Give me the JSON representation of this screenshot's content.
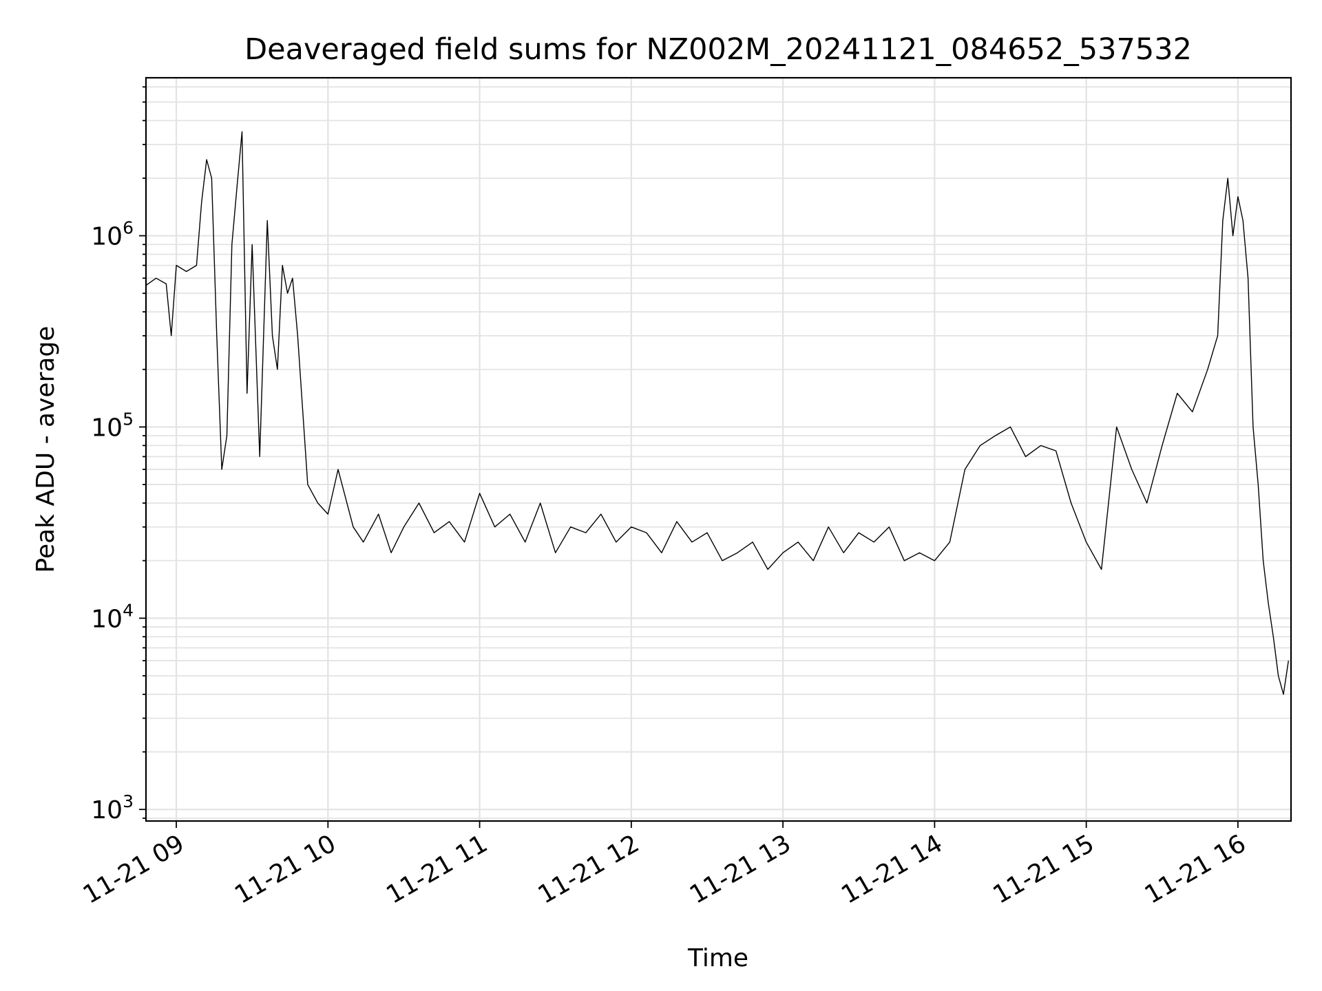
{
  "chart_data": {
    "type": "line",
    "title": "Deaveraged field sums for NZ002M_20241121_084652_537532",
    "xlabel": "Time",
    "ylabel": "Peak ADU - average",
    "yscale": "log",
    "ylim": [
      870,
      6700000
    ],
    "xlim": [
      "2024-11-21 08:48",
      "2024-11-21 16:21"
    ],
    "grid": true,
    "x_tick_labels": [
      "11-21 09",
      "11-21 10",
      "11-21 11",
      "11-21 12",
      "11-21 13",
      "11-21 14",
      "11-21 15",
      "11-21 16"
    ],
    "y_tick_labels": [
      {
        "base": "10",
        "exp": "3"
      },
      {
        "base": "10",
        "exp": "4"
      },
      {
        "base": "10",
        "exp": "5"
      },
      {
        "base": "10",
        "exp": "6"
      }
    ],
    "series": [
      {
        "color": "#000000",
        "x": [
          "2024-11-21 08:48",
          "2024-11-21 08:52",
          "2024-11-21 08:56",
          "2024-11-21 08:58",
          "2024-11-21 09:00",
          "2024-11-21 09:04",
          "2024-11-21 09:08",
          "2024-11-21 09:10",
          "2024-11-21 09:12",
          "2024-11-21 09:14",
          "2024-11-21 09:16",
          "2024-11-21 09:18",
          "2024-11-21 09:20",
          "2024-11-21 09:22",
          "2024-11-21 09:24",
          "2024-11-21 09:26",
          "2024-11-21 09:28",
          "2024-11-21 09:30",
          "2024-11-21 09:33",
          "2024-11-21 09:36",
          "2024-11-21 09:38",
          "2024-11-21 09:40",
          "2024-11-21 09:42",
          "2024-11-21 09:44",
          "2024-11-21 09:46",
          "2024-11-21 09:48",
          "2024-11-21 09:52",
          "2024-11-21 09:56",
          "2024-11-21 10:00",
          "2024-11-21 10:04",
          "2024-11-21 10:10",
          "2024-11-21 10:14",
          "2024-11-21 10:20",
          "2024-11-21 10:25",
          "2024-11-21 10:30",
          "2024-11-21 10:36",
          "2024-11-21 10:42",
          "2024-11-21 10:48",
          "2024-11-21 10:54",
          "2024-11-21 11:00",
          "2024-11-21 11:06",
          "2024-11-21 11:12",
          "2024-11-21 11:18",
          "2024-11-21 11:24",
          "2024-11-21 11:30",
          "2024-11-21 11:36",
          "2024-11-21 11:42",
          "2024-11-21 11:48",
          "2024-11-21 11:54",
          "2024-11-21 12:00",
          "2024-11-21 12:06",
          "2024-11-21 12:12",
          "2024-11-21 12:18",
          "2024-11-21 12:24",
          "2024-11-21 12:30",
          "2024-11-21 12:36",
          "2024-11-21 12:42",
          "2024-11-21 12:48",
          "2024-11-21 12:54",
          "2024-11-21 13:00",
          "2024-11-21 13:06",
          "2024-11-21 13:12",
          "2024-11-21 13:18",
          "2024-11-21 13:24",
          "2024-11-21 13:30",
          "2024-11-21 13:36",
          "2024-11-21 13:42",
          "2024-11-21 13:48",
          "2024-11-21 13:54",
          "2024-11-21 14:00",
          "2024-11-21 14:06",
          "2024-11-21 14:12",
          "2024-11-21 14:18",
          "2024-11-21 14:24",
          "2024-11-21 14:30",
          "2024-11-21 14:36",
          "2024-11-21 14:42",
          "2024-11-21 14:48",
          "2024-11-21 14:54",
          "2024-11-21 15:00",
          "2024-11-21 15:06",
          "2024-11-21 15:12",
          "2024-11-21 15:18",
          "2024-11-21 15:24",
          "2024-11-21 15:30",
          "2024-11-21 15:36",
          "2024-11-21 15:42",
          "2024-11-21 15:48",
          "2024-11-21 15:52",
          "2024-11-21 15:54",
          "2024-11-21 15:56",
          "2024-11-21 15:58",
          "2024-11-21 16:00",
          "2024-11-21 16:02",
          "2024-11-21 16:04",
          "2024-11-21 16:06",
          "2024-11-21 16:08",
          "2024-11-21 16:10",
          "2024-11-21 16:12",
          "2024-11-21 16:14",
          "2024-11-21 16:16",
          "2024-11-21 16:18",
          "2024-11-21 16:20"
        ],
        "y": [
          550000,
          600000,
          560000,
          300000,
          700000,
          650000,
          700000,
          1500000,
          2500000,
          2000000,
          300000,
          60000,
          90000,
          900000,
          1800000,
          3500000,
          150000,
          900000,
          70000,
          1200000,
          300000,
          200000,
          700000,
          500000,
          600000,
          300000,
          50000,
          40000,
          35000,
          60000,
          30000,
          25000,
          35000,
          22000,
          30000,
          40000,
          28000,
          32000,
          25000,
          45000,
          30000,
          35000,
          25000,
          40000,
          22000,
          30000,
          28000,
          35000,
          25000,
          30000,
          28000,
          22000,
          32000,
          25000,
          28000,
          20000,
          22000,
          25000,
          18000,
          22000,
          25000,
          20000,
          30000,
          22000,
          28000,
          25000,
          30000,
          20000,
          22000,
          20000,
          25000,
          60000,
          80000,
          90000,
          100000,
          70000,
          80000,
          75000,
          40000,
          25000,
          18000,
          100000,
          60000,
          40000,
          80000,
          150000,
          120000,
          200000,
          300000,
          1200000,
          2000000,
          1000000,
          1600000,
          1200000,
          600000,
          100000,
          50000,
          20000,
          12000,
          8000,
          5000,
          4000,
          6000
        ]
      }
    ]
  }
}
